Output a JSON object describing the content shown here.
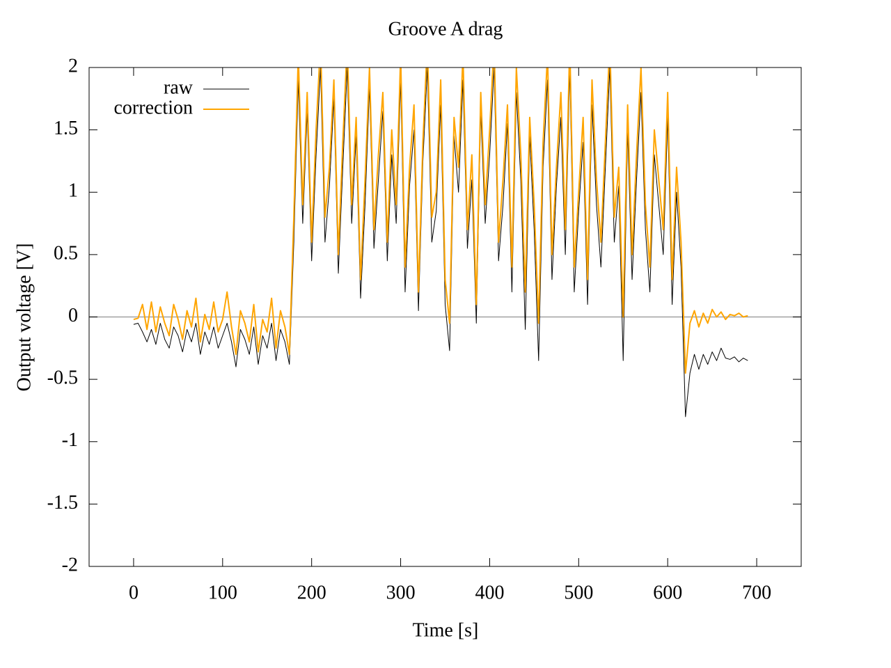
{
  "chart_data": {
    "type": "line",
    "title": "Groove A drag",
    "x_label": "Time [s]",
    "y_label": "Output voltage [V]",
    "xlim": [
      -50,
      750
    ],
    "ylim": [
      -2,
      2
    ],
    "xticks": [
      0,
      100,
      200,
      300,
      400,
      500,
      600,
      700
    ],
    "yticks": [
      -2,
      -1.5,
      -1,
      -0.5,
      0,
      0.5,
      1,
      1.5,
      2
    ],
    "zero_axis": true,
    "legend": "top-left",
    "x": [
      0,
      5,
      10,
      15,
      20,
      25,
      30,
      35,
      40,
      45,
      50,
      55,
      60,
      65,
      70,
      75,
      80,
      85,
      90,
      95,
      100,
      105,
      110,
      115,
      120,
      125,
      130,
      135,
      140,
      145,
      150,
      155,
      160,
      165,
      170,
      175,
      180,
      185,
      190,
      195,
      200,
      205,
      210,
      215,
      220,
      225,
      230,
      235,
      240,
      245,
      250,
      255,
      260,
      265,
      270,
      275,
      280,
      285,
      290,
      295,
      300,
      305,
      310,
      315,
      320,
      325,
      330,
      335,
      340,
      345,
      350,
      355,
      360,
      365,
      370,
      375,
      380,
      385,
      390,
      395,
      400,
      405,
      410,
      415,
      420,
      425,
      430,
      435,
      440,
      445,
      450,
      455,
      460,
      465,
      470,
      475,
      480,
      485,
      490,
      495,
      500,
      505,
      510,
      515,
      520,
      525,
      530,
      535,
      540,
      545,
      550,
      555,
      560,
      565,
      570,
      575,
      580,
      585,
      590,
      595,
      600,
      605,
      610,
      615,
      620,
      625,
      630,
      635,
      640,
      645,
      650,
      655,
      660,
      665,
      670,
      675,
      680,
      685,
      690
    ],
    "series": [
      {
        "name": "raw",
        "color": "#000000",
        "width": 1,
        "values": [
          -0.06,
          -0.05,
          -0.12,
          -0.2,
          -0.1,
          -0.22,
          -0.05,
          -0.18,
          -0.25,
          -0.08,
          -0.15,
          -0.28,
          -0.1,
          -0.2,
          -0.05,
          -0.3,
          -0.12,
          -0.22,
          -0.08,
          -0.25,
          -0.15,
          -0.05,
          -0.2,
          -0.4,
          -0.1,
          -0.18,
          -0.3,
          -0.08,
          -0.38,
          -0.15,
          -0.25,
          -0.05,
          -0.35,
          -0.1,
          -0.2,
          -0.38,
          0.6,
          1.9,
          0.75,
          1.65,
          0.45,
          1.3,
          2.0,
          0.6,
          1.05,
          1.75,
          0.35,
          1.2,
          2.0,
          0.75,
          1.45,
          0.15,
          0.9,
          1.85,
          0.55,
          1.1,
          1.65,
          0.45,
          1.3,
          0.75,
          1.9,
          0.2,
          1.05,
          1.5,
          0.05,
          1.25,
          2.0,
          0.6,
          0.85,
          1.7,
          0.1,
          -0.27,
          1.45,
          1.0,
          1.9,
          0.55,
          1.1,
          -0.05,
          1.65,
          0.75,
          1.3,
          2.0,
          0.45,
          0.9,
          1.55,
          0.2,
          1.8,
          1.1,
          -0.1,
          1.45,
          0.7,
          -0.35,
          1.2,
          1.9,
          0.3,
          1.05,
          1.6,
          0.5,
          2.0,
          0.2,
          0.85,
          1.4,
          0.1,
          1.7,
          0.9,
          0.4,
          1.2,
          2.0,
          0.6,
          1.05,
          -0.35,
          1.5,
          0.3,
          1.1,
          1.8,
          0.7,
          0.2,
          1.3,
          0.9,
          0.5,
          1.6,
          0.1,
          1.0,
          0.4,
          -0.8,
          -0.45,
          -0.3,
          -0.42,
          -0.3,
          -0.38,
          -0.28,
          -0.35,
          -0.25,
          -0.33,
          -0.34,
          -0.32,
          -0.36,
          -0.33,
          -0.35
        ]
      },
      {
        "name": "correction",
        "color": "#ffa500",
        "width": 2,
        "values": [
          -0.02,
          -0.01,
          0.1,
          -0.1,
          0.12,
          -0.12,
          0.08,
          -0.05,
          -0.15,
          0.1,
          -0.02,
          -0.18,
          0.05,
          -0.08,
          0.15,
          -0.2,
          0.02,
          -0.1,
          0.12,
          -0.12,
          -0.02,
          0.2,
          -0.08,
          -0.3,
          0.05,
          -0.05,
          -0.2,
          0.1,
          -0.28,
          -0.02,
          -0.12,
          0.15,
          -0.25,
          0.05,
          -0.08,
          -0.3,
          0.8,
          2.1,
          0.9,
          1.8,
          0.6,
          1.5,
          2.2,
          0.8,
          1.2,
          1.9,
          0.5,
          1.4,
          2.2,
          0.9,
          1.6,
          0.3,
          1.1,
          2.0,
          0.7,
          1.3,
          1.8,
          0.6,
          1.5,
          0.9,
          2.1,
          0.4,
          1.2,
          1.7,
          0.2,
          1.4,
          2.2,
          0.8,
          1.0,
          1.9,
          0.3,
          -0.05,
          1.6,
          1.2,
          2.1,
          0.7,
          1.3,
          0.1,
          1.8,
          0.9,
          1.5,
          2.2,
          0.6,
          1.1,
          1.7,
          0.4,
          2.0,
          1.3,
          0.2,
          1.6,
          0.9,
          -0.05,
          1.4,
          2.1,
          0.5,
          1.2,
          1.8,
          0.7,
          2.2,
          0.4,
          1.0,
          1.6,
          0.3,
          1.9,
          1.1,
          0.6,
          1.4,
          2.2,
          0.8,
          1.2,
          0.0,
          1.7,
          0.5,
          1.3,
          2.0,
          0.9,
          0.4,
          1.5,
          1.1,
          0.7,
          1.8,
          0.3,
          1.2,
          0.6,
          -0.45,
          -0.05,
          0.05,
          -0.08,
          0.03,
          -0.05,
          0.06,
          0.0,
          0.04,
          -0.02,
          0.02,
          0.01,
          0.03,
          0.0,
          0.01
        ]
      }
    ]
  }
}
